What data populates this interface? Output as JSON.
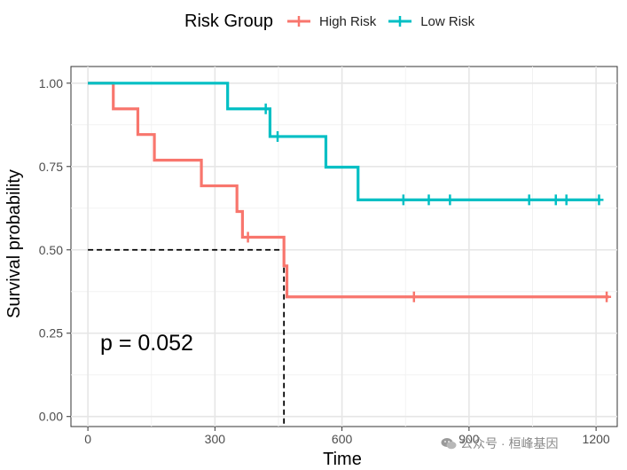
{
  "chart_data": {
    "type": "line",
    "subtype": "kaplan-meier",
    "title": "",
    "xlabel": "Time",
    "ylabel": "Survival probability",
    "xlim": [
      -40,
      1250
    ],
    "ylim": [
      -0.03,
      1.05
    ],
    "x_ticks": [
      0,
      300,
      600,
      900,
      1200
    ],
    "y_ticks": [
      0.0,
      0.25,
      0.5,
      0.75,
      1.0
    ],
    "x_tick_labels": [
      "0",
      "300",
      "600",
      "900",
      "1200"
    ],
    "y_tick_labels": [
      "0.00",
      "0.25",
      "0.50",
      "0.75",
      "1.00"
    ],
    "grid": true,
    "legend_title": "Risk Group",
    "legend_position": "top",
    "annotation": "p = 0.052",
    "median_line": {
      "x": 463,
      "y": 0.5
    },
    "series": [
      {
        "name": "High Risk",
        "color": "#F8766D",
        "times": [
          0,
          60,
          118,
          157,
          268,
          352,
          365,
          463,
          470,
          1230
        ],
        "survival": [
          1.0,
          0.923,
          0.846,
          0.769,
          0.692,
          0.615,
          0.538,
          0.452,
          0.359,
          0.359
        ],
        "censor_times": [
          378,
          770,
          1225
        ],
        "censor_survival": [
          0.538,
          0.359,
          0.359
        ]
      },
      {
        "name": "Low Risk",
        "color": "#00BFC4",
        "times": [
          0,
          330,
          430,
          562,
          638,
          1210
        ],
        "survival": [
          1.0,
          0.923,
          0.84,
          0.748,
          0.65,
          0.65
        ],
        "censor_times": [
          420,
          448,
          745,
          805,
          855,
          1042,
          1105,
          1130,
          1207
        ],
        "censor_survival": [
          0.923,
          0.84,
          0.65,
          0.65,
          0.65,
          0.65,
          0.65,
          0.65,
          0.65
        ]
      }
    ]
  },
  "watermark": {
    "text": "公众号 · 桓峰基因"
  }
}
